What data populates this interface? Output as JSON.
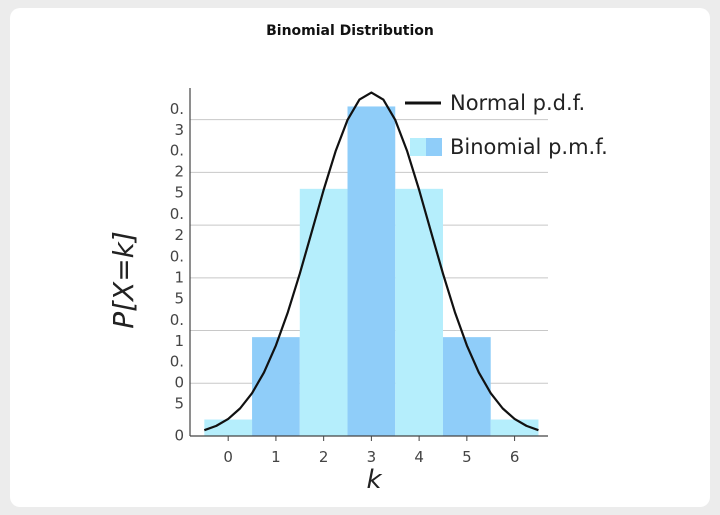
{
  "chart_data": {
    "type": "bar",
    "title": "Binomial Distribution",
    "xlabel": "k",
    "ylabel": "P[X=k]",
    "series": [
      {
        "name": "Binomial p.m.f.",
        "type": "bar",
        "colors": [
          "#b5eefc",
          "#8fcdf9",
          "#b5eefc",
          "#8fcdf9",
          "#b5eefc",
          "#8fcdf9",
          "#b5eefc"
        ],
        "x": [
          0,
          1,
          2,
          3,
          4,
          5,
          6
        ],
        "values": [
          0.015625,
          0.09375,
          0.234375,
          0.3125,
          0.234375,
          0.09375,
          0.015625
        ]
      },
      {
        "name": "Normal p.d.f.",
        "type": "line",
        "color": "#111111",
        "x": [
          -0.5,
          -0.25,
          0,
          0.25,
          0.5,
          0.75,
          1,
          1.25,
          1.5,
          1.75,
          2,
          2.25,
          2.5,
          2.75,
          3,
          3.25,
          3.5,
          3.75,
          4,
          4.25,
          4.5,
          4.75,
          5,
          5.25,
          5.5,
          5.75,
          6,
          6.25,
          6.5
        ],
        "values": [
          0.0055,
          0.0096,
          0.0162,
          0.0262,
          0.0406,
          0.0603,
          0.0859,
          0.1174,
          0.1539,
          0.1935,
          0.2334,
          0.27,
          0.2997,
          0.319,
          0.3257,
          0.319,
          0.2997,
          0.27,
          0.2334,
          0.1935,
          0.1539,
          0.1174,
          0.0859,
          0.0603,
          0.0406,
          0.0262,
          0.0162,
          0.0096,
          0.0055
        ]
      }
    ],
    "xlim": [
      -0.8,
      6.7
    ],
    "xticks": [
      0,
      1,
      2,
      3,
      4,
      5,
      6
    ],
    "ylim": [
      0,
      0.33
    ],
    "yticks": [
      0,
      0.05,
      0.1,
      0.15,
      0.2,
      0.25,
      0.3
    ],
    "grid": true,
    "legend": "upper right"
  }
}
